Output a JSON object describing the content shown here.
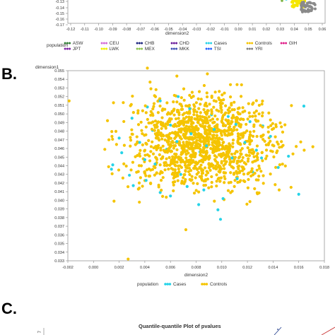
{
  "panel_a": {
    "y_ticks": [
      "-0.13",
      "-0.14",
      "-0.15",
      "-0.16",
      "-0.17"
    ],
    "x_ticks": [
      "-0.12",
      "-0.11",
      "-0.10",
      "-0.09",
      "-0.08",
      "-0.07",
      "-0.06",
      "-0.05",
      "-0.04",
      "-0.03",
      "-0.02",
      "-0.01",
      "0.00",
      "0.01",
      "0.02",
      "0.03",
      "0.04",
      "0.05",
      "0.06"
    ],
    "xlabel": "dimension2",
    "legend_title": "population",
    "legend_items": [
      {
        "label": "ASW",
        "color": "#2e7d32"
      },
      {
        "label": "CEU",
        "color": "#d36ad6"
      },
      {
        "label": "CHB",
        "color": "#1a237e"
      },
      {
        "label": "CHD",
        "color": "#6a1b9a"
      },
      {
        "label": "Cases",
        "color": "#26d3e8"
      },
      {
        "label": "Controls",
        "color": "#f5c400"
      },
      {
        "label": "GIH",
        "color": "#e0208a"
      },
      {
        "label": "JPT",
        "color": "#7b1fa2"
      },
      {
        "label": "LWK",
        "color": "#f0f000"
      },
      {
        "label": "MEX",
        "color": "#8bc34a"
      },
      {
        "label": "MKK",
        "color": "#3f51b5"
      },
      {
        "label": "TSI",
        "color": "#2962ff"
      },
      {
        "label": "YRI",
        "color": "#808080"
      }
    ]
  },
  "panel_b": {
    "letter": "B."
  },
  "panel_c": {
    "letter": "C.",
    "title": "Quantile-quantile Plot of pvalues",
    "y_tick": "7"
  },
  "chart_data": [
    {
      "type": "scatter",
      "title": "",
      "xlabel": "dimension2",
      "ylabel": "dimension1",
      "xlim": [
        -0.002,
        0.018
      ],
      "ylim": [
        0.033,
        0.055
      ],
      "x_ticks": [
        "-0.002",
        "0.000",
        "0.002",
        "0.004",
        "0.006",
        "0.008",
        "0.010",
        "0.012",
        "0.014",
        "0.016",
        "0.018"
      ],
      "y_ticks": [
        "0.055",
        "0.054",
        "0.053",
        "0.052",
        "0.051",
        "0.050",
        "0.049",
        "0.048",
        "0.047",
        "0.046",
        "0.045",
        "0.044",
        "0.043",
        "0.042",
        "0.041",
        "0.040",
        "0.039",
        "0.038",
        "0.037",
        "0.036",
        "0.035",
        "0.034",
        "0.033"
      ],
      "legend_title": "population",
      "series": [
        {
          "name": "Cases",
          "color": "#26d3e8",
          "points": [
            [
              0.0164,
              0.0509
            ],
            [
              0.0066,
              0.052
            ],
            [
              0.0052,
              0.0515
            ],
            [
              0.0042,
              0.0508
            ],
            [
              0.003,
              0.0495
            ],
            [
              0.0122,
              0.0491
            ],
            [
              0.0132,
              0.0486
            ],
            [
              0.0138,
              0.0474
            ],
            [
              0.0105,
              0.0497
            ],
            [
              0.0092,
              0.0499
            ],
            [
              0.0075,
              0.0506
            ],
            [
              0.006,
              0.0487
            ],
            [
              0.0046,
              0.0481
            ],
            [
              0.0036,
              0.0467
            ],
            [
              0.0022,
              0.0455
            ],
            [
              0.0015,
              0.0441
            ],
            [
              0.0028,
              0.0429
            ],
            [
              0.0041,
              0.0423
            ],
            [
              0.0052,
              0.0409
            ],
            [
              0.006,
              0.0405
            ],
            [
              0.0073,
              0.0416
            ],
            [
              0.0086,
              0.0412
            ],
            [
              0.0101,
              0.0402
            ],
            [
              0.0112,
              0.0425
            ],
            [
              0.0124,
              0.0433
            ],
            [
              0.0131,
              0.0449
            ],
            [
              0.0144,
              0.0438
            ],
            [
              0.0152,
              0.0451
            ],
            [
              0.0097,
              0.0389
            ],
            [
              0.0082,
              0.0395
            ],
            [
              0.0068,
              0.043
            ],
            [
              0.0108,
              0.0449
            ],
            [
              0.0088,
              0.0463
            ],
            [
              0.0057,
              0.0459
            ],
            [
              0.0118,
              0.0467
            ],
            [
              0.0048,
              0.0442
            ],
            [
              0.0031,
              0.0417
            ],
            [
              0.0014,
              0.0436
            ],
            [
              0.016,
              0.0407
            ],
            [
              0.0099,
              0.0378
            ],
            [
              0.0076,
              0.0477
            ],
            [
              0.0065,
              0.0468
            ],
            [
              0.0127,
              0.0458
            ],
            [
              0.0111,
              0.0488
            ],
            [
              0.0094,
              0.0482
            ],
            [
              0.0083,
              0.0456
            ],
            [
              0.004,
              0.0447
            ],
            [
              0.002,
              0.0472
            ]
          ]
        },
        {
          "name": "Controls",
          "color": "#f5c400",
          "extra_points": [
            [
              -0.0019,
              0.0515
            ],
            [
              0.0027,
              0.0332
            ],
            [
              0.0072,
              0.0366
            ],
            [
              0.0016,
              0.0399
            ],
            [
              0.0171,
              0.0462
            ],
            [
              0.0042,
              0.0553
            ],
            [
              0.0012,
              0.047
            ],
            [
              0.0154,
              0.0415
            ]
          ],
          "cloud": {
            "center": [
              0.0085,
              0.0467
            ],
            "spread": [
              0.0028,
              0.0027
            ],
            "count": 1300
          }
        }
      ]
    }
  ]
}
